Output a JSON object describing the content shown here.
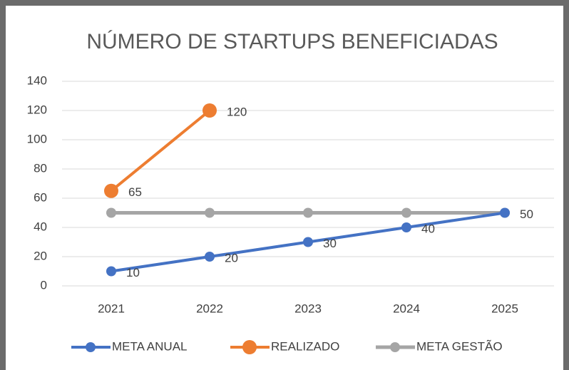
{
  "chart_data": {
    "type": "line",
    "title": "NÚMERO DE STARTUPS BENEFICIADAS",
    "categories": [
      "2021",
      "2022",
      "2023",
      "2024",
      "2025"
    ],
    "series": [
      {
        "name": "META ANUAL",
        "color": "#4472c4",
        "values": [
          10,
          20,
          30,
          40,
          50
        ]
      },
      {
        "name": "REALIZADO",
        "color": "#ed7d31",
        "values": [
          65,
          120,
          null,
          null,
          null
        ]
      },
      {
        "name": "META GESTÃO",
        "color": "#a5a5a5",
        "values": [
          50,
          50,
          50,
          50,
          50
        ]
      }
    ],
    "ylim": [
      0,
      140
    ],
    "yticks": [
      0,
      20,
      40,
      60,
      80,
      100,
      120,
      140
    ],
    "grid": true,
    "legend": "bottom"
  }
}
